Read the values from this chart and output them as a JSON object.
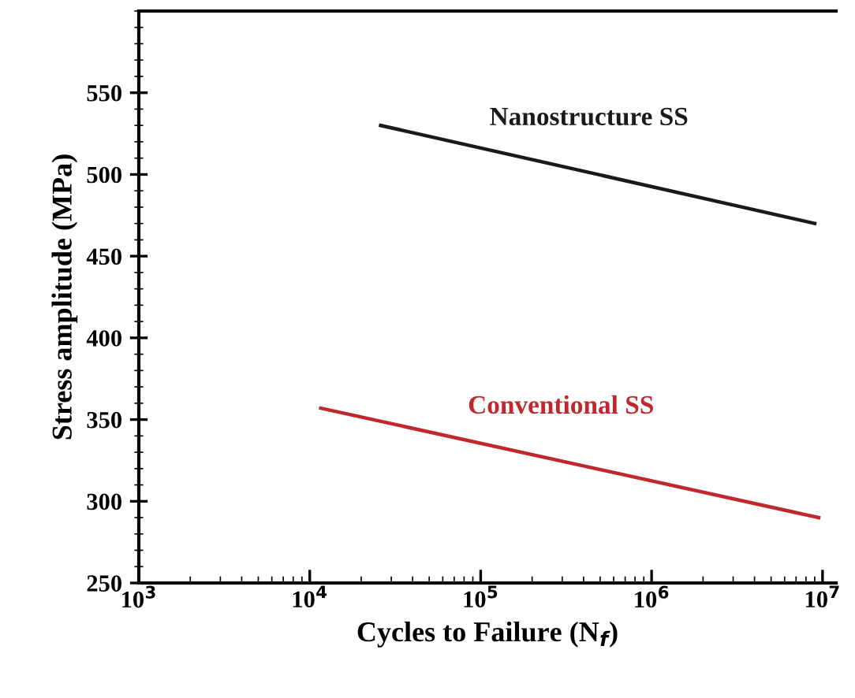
{
  "chart_data": {
    "type": "line",
    "xlabel": "Cycles to Failure (N$_{f}$)",
    "ylabel": "Stress amplitude (MPa)",
    "log": "x",
    "xlim": [
      1000,
      12000000
    ],
    "ylim": [
      250,
      600
    ],
    "xticks": [
      {
        "value": 1000,
        "label": "10$^{3}$"
      },
      {
        "value": 10000,
        "label": "10$^{4}$"
      },
      {
        "value": 100000,
        "label": "10$^{5}$"
      },
      {
        "value": 1000000,
        "label": "10$^{6}$"
      },
      {
        "value": 10000000,
        "label": "10$^{7}$"
      }
    ],
    "yticks": [
      250,
      300,
      350,
      400,
      450,
      500,
      550
    ],
    "grid": false,
    "legend": false,
    "marker": "none",
    "line_style": "solid",
    "series": [
      {
        "name": "Nanostructure SS",
        "color": "#1a1a1a",
        "x": [
          26000,
          9000000
        ],
        "values": [
          530,
          470
        ]
      },
      {
        "name": "Conventional SS",
        "color": "#c0282d",
        "x": [
          11600,
          9500000
        ],
        "values": [
          357,
          290
        ]
      }
    ]
  }
}
